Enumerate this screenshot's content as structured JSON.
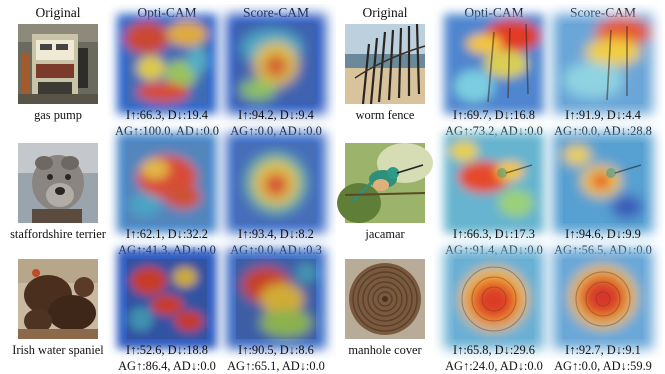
{
  "headers": [
    "Original",
    "Opti-CAM",
    "Score-CAM",
    "Original",
    "Opti-CAM",
    "Score-CAM"
  ],
  "rows": [
    {
      "left": {
        "label": "gas pump",
        "opti": [
          "I↑:66.3, D↓:19.4",
          "AG↑:100.0, AD↓:0.0"
        ],
        "score": [
          "I↑:94.2, D↓:9.4",
          "AG↑:0.0, AD↓:0.0"
        ]
      },
      "right": {
        "label": "worm fence",
        "opti": [
          "I↑:69.7, D↓:16.8",
          "AG↑:73.2, AD↓:0.0"
        ],
        "score": [
          "I↑:91.9, D↓:4.4",
          "AG↑:0.0, AD↓:28.8"
        ]
      }
    },
    {
      "left": {
        "label": "staffordshire terrier",
        "opti": [
          "I↑:62.1, D↓:32.2",
          "AG↑:41.3, AD↓:0.0"
        ],
        "score": [
          "I↑:93.4, D↓:8.2",
          "AG↑:0.0, AD↓:0.3"
        ]
      },
      "right": {
        "label": "jacamar",
        "opti": [
          "I↑:66.3, D↓:17.3",
          "AG↑:91.4, AD↓:0.0"
        ],
        "score": [
          "I↑:94.6, D↓:9.9",
          "AG↑:56.5, AD↓:0.0"
        ]
      }
    },
    {
      "left": {
        "label": "Irish water spaniel",
        "opti": [
          "I↑:52.6, D↓:18.8",
          "AG↑:86.4, AD↓:0.0"
        ],
        "score": [
          "I↑:90.5, D↓:8.6",
          "AG↑:65.1, AD↓:0.0"
        ]
      },
      "right": {
        "label": "manhole cover",
        "opti": [
          "I↑:65.8, D↓:29.6",
          "AG↑:24.0, AD↓:0.0"
        ],
        "score": [
          "I↑:92.7, D↓:9.1",
          "AG↑:0.0, AD↓:59.9"
        ]
      }
    }
  ]
}
